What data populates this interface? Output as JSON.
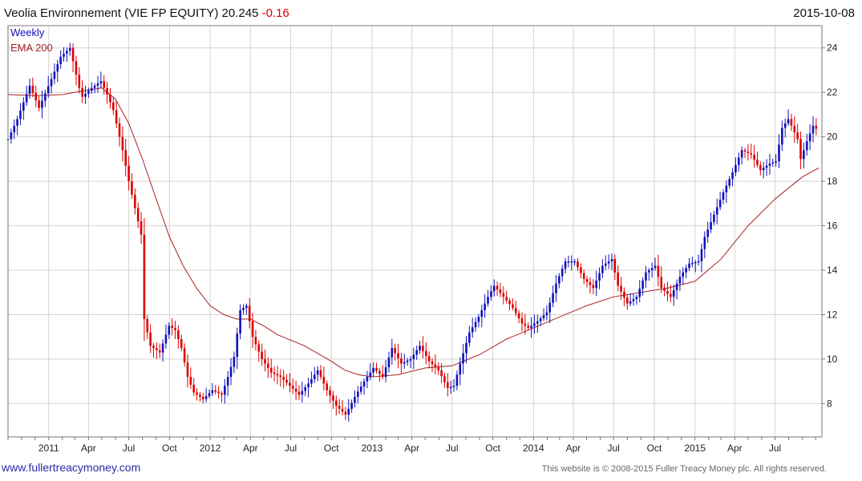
{
  "chart_data": {
    "type": "candlestick",
    "title": "Veolia Environnement (VIE FP EQUITY)",
    "last_price": "20.245",
    "change": "-0.16",
    "date": "2015-10-08",
    "period_label": "Weekly",
    "ema_label": "EMA 200",
    "ylim": [
      6.5,
      25
    ],
    "y_ticks": [
      "8",
      "10",
      "12",
      "14",
      "16",
      "18",
      "20",
      "22",
      "24"
    ],
    "x_ticks": [
      "2011",
      "Apr",
      "Jul",
      "Oct",
      "2012",
      "Apr",
      "Jul",
      "Oct",
      "2013",
      "Apr",
      "Jul",
      "Oct",
      "2014",
      "Apr",
      "Jul",
      "Oct",
      "2015",
      "Apr",
      "Jul"
    ],
    "x_range": [
      "2010-10-01",
      "2015-10-15"
    ],
    "price_path": [
      [
        "2010-10-01",
        19.9
      ],
      [
        "2010-10-22",
        20.8
      ],
      [
        "2010-11-19",
        22.3
      ],
      [
        "2010-12-10",
        21.3
      ],
      [
        "2011-01-07",
        22.6
      ],
      [
        "2011-01-28",
        23.6
      ],
      [
        "2011-02-18",
        24.0
      ],
      [
        "2011-03-11",
        22.2
      ],
      [
        "2011-03-18",
        21.8
      ],
      [
        "2011-04-08",
        22.2
      ],
      [
        "2011-04-29",
        22.5
      ],
      [
        "2011-05-13",
        21.9
      ],
      [
        "2011-05-27",
        21.2
      ],
      [
        "2011-06-17",
        19.4
      ],
      [
        "2011-07-01",
        18.0
      ],
      [
        "2011-07-15",
        16.8
      ],
      [
        "2011-07-29",
        15.6
      ],
      [
        "2011-08-05",
        11.8
      ],
      [
        "2011-08-19",
        10.6
      ],
      [
        "2011-09-09",
        10.3
      ],
      [
        "2011-09-30",
        11.5
      ],
      [
        "2011-10-14",
        11.3
      ],
      [
        "2011-10-28",
        10.5
      ],
      [
        "2011-11-11",
        9.2
      ],
      [
        "2011-11-25",
        8.5
      ],
      [
        "2011-12-16",
        8.2
      ],
      [
        "2012-01-06",
        8.6
      ],
      [
        "2012-01-27",
        8.4
      ],
      [
        "2012-02-10",
        9.2
      ],
      [
        "2012-02-24",
        10.1
      ],
      [
        "2012-03-09",
        12.2
      ],
      [
        "2012-03-23",
        12.4
      ],
      [
        "2012-04-06",
        11.0
      ],
      [
        "2012-04-27",
        10.0
      ],
      [
        "2012-05-18",
        9.4
      ],
      [
        "2012-06-08",
        9.2
      ],
      [
        "2012-06-29",
        8.8
      ],
      [
        "2012-07-20",
        8.4
      ],
      [
        "2012-08-10",
        8.9
      ],
      [
        "2012-08-31",
        9.5
      ],
      [
        "2012-09-21",
        8.6
      ],
      [
        "2012-10-12",
        7.9
      ],
      [
        "2012-11-02",
        7.5
      ],
      [
        "2012-11-23",
        8.3
      ],
      [
        "2012-12-14",
        9.0
      ],
      [
        "2013-01-04",
        9.6
      ],
      [
        "2013-01-25",
        9.2
      ],
      [
        "2013-02-15",
        10.5
      ],
      [
        "2013-03-08",
        9.8
      ],
      [
        "2013-03-29",
        10.0
      ],
      [
        "2013-04-19",
        10.6
      ],
      [
        "2013-05-10",
        9.9
      ],
      [
        "2013-05-31",
        9.5
      ],
      [
        "2013-06-21",
        8.7
      ],
      [
        "2013-07-05",
        8.8
      ],
      [
        "2013-07-19",
        9.8
      ],
      [
        "2013-08-09",
        11.2
      ],
      [
        "2013-08-30",
        11.9
      ],
      [
        "2013-09-20",
        12.8
      ],
      [
        "2013-10-04",
        13.3
      ],
      [
        "2013-10-25",
        12.8
      ],
      [
        "2013-11-15",
        12.3
      ],
      [
        "2013-12-06",
        11.6
      ],
      [
        "2013-12-20",
        11.4
      ],
      [
        "2014-01-10",
        11.7
      ],
      [
        "2014-01-31",
        12.1
      ],
      [
        "2014-02-21",
        13.4
      ],
      [
        "2014-03-14",
        14.4
      ],
      [
        "2014-04-04",
        14.4
      ],
      [
        "2014-04-25",
        13.6
      ],
      [
        "2014-05-16",
        13.2
      ],
      [
        "2014-06-06",
        14.2
      ],
      [
        "2014-06-27",
        14.5
      ],
      [
        "2014-07-11",
        13.3
      ],
      [
        "2014-08-01",
        12.5
      ],
      [
        "2014-08-22",
        12.8
      ],
      [
        "2014-09-12",
        13.9
      ],
      [
        "2014-10-03",
        14.2
      ],
      [
        "2014-10-17",
        13.2
      ],
      [
        "2014-11-07",
        12.8
      ],
      [
        "2014-11-28",
        13.7
      ],
      [
        "2014-12-19",
        14.3
      ],
      [
        "2015-01-09",
        14.4
      ],
      [
        "2015-01-23",
        15.5
      ],
      [
        "2015-02-13",
        16.5
      ],
      [
        "2015-03-06",
        17.5
      ],
      [
        "2015-03-27",
        18.4
      ],
      [
        "2015-04-17",
        19.4
      ],
      [
        "2015-05-08",
        19.2
      ],
      [
        "2015-05-29",
        18.5
      ],
      [
        "2015-06-19",
        18.8
      ],
      [
        "2015-07-03",
        18.9
      ],
      [
        "2015-07-17",
        20.4
      ],
      [
        "2015-07-31",
        20.8
      ],
      [
        "2015-08-21",
        19.9
      ],
      [
        "2015-08-28",
        19.0
      ],
      [
        "2015-09-11",
        19.8
      ],
      [
        "2015-09-25",
        20.5
      ],
      [
        "2015-10-08",
        20.25
      ]
    ],
    "ema_path": [
      [
        "2010-10-01",
        21.9
      ],
      [
        "2010-12-01",
        21.85
      ],
      [
        "2011-02-01",
        21.9
      ],
      [
        "2011-03-15",
        22.05
      ],
      [
        "2011-05-01",
        22.2
      ],
      [
        "2011-06-01",
        21.7
      ],
      [
        "2011-07-01",
        20.6
      ],
      [
        "2011-08-01",
        19.0
      ],
      [
        "2011-09-01",
        17.2
      ],
      [
        "2011-10-01",
        15.5
      ],
      [
        "2011-11-01",
        14.2
      ],
      [
        "2011-12-01",
        13.2
      ],
      [
        "2012-01-01",
        12.4
      ],
      [
        "2012-02-01",
        12.0
      ],
      [
        "2012-03-01",
        11.8
      ],
      [
        "2012-04-01",
        11.8
      ],
      [
        "2012-05-01",
        11.5
      ],
      [
        "2012-06-01",
        11.1
      ],
      [
        "2012-08-01",
        10.6
      ],
      [
        "2012-10-01",
        9.9
      ],
      [
        "2012-11-01",
        9.5
      ],
      [
        "2012-12-01",
        9.3
      ],
      [
        "2013-01-01",
        9.2
      ],
      [
        "2013-03-01",
        9.3
      ],
      [
        "2013-05-01",
        9.6
      ],
      [
        "2013-07-01",
        9.7
      ],
      [
        "2013-09-01",
        10.2
      ],
      [
        "2013-11-01",
        10.9
      ],
      [
        "2014-01-01",
        11.4
      ],
      [
        "2014-03-01",
        11.9
      ],
      [
        "2014-05-01",
        12.4
      ],
      [
        "2014-07-01",
        12.8
      ],
      [
        "2014-09-01",
        13.0
      ],
      [
        "2014-11-01",
        13.2
      ],
      [
        "2015-01-01",
        13.5
      ],
      [
        "2015-03-01",
        14.5
      ],
      [
        "2015-05-01",
        16.0
      ],
      [
        "2015-07-01",
        17.2
      ],
      [
        "2015-09-01",
        18.2
      ],
      [
        "2015-10-08",
        18.6
      ]
    ]
  },
  "footer": {
    "website": "www.fullertreacymoney.com",
    "copyright": "This website is © 2008-2015 Fuller Treacy Money plc. All rights reserved."
  },
  "colors": {
    "up": "#1111bb",
    "down": "#dd0000",
    "ema": "#aa2222",
    "grid": "#d4d4d4",
    "change": "#dd0000"
  }
}
